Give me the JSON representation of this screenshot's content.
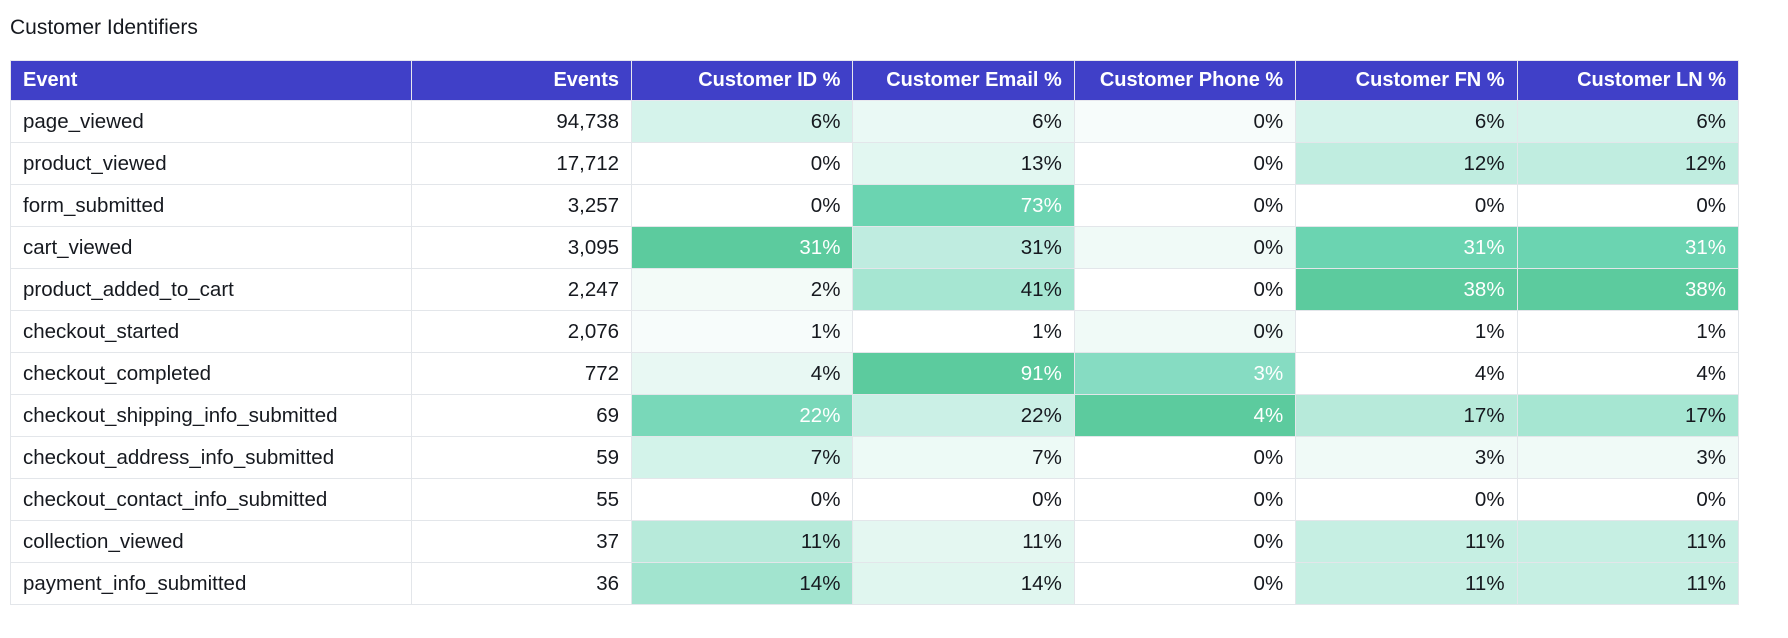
{
  "title": "Customer Identifiers",
  "table": {
    "columns": [
      "Event",
      "Events",
      "Customer ID %",
      "Customer Email %",
      "Customer Phone %",
      "Customer FN %",
      "Customer LN %"
    ],
    "rows": [
      {
        "event": "page_viewed",
        "events": "94,738",
        "cells": [
          "6%",
          "6%",
          "0%",
          "6%",
          "6%"
        ],
        "colors": [
          "#d5f3eb",
          "#eaf9f5",
          "#f7fcfb",
          "#d5f3eb",
          "#d5f3eb"
        ],
        "white": [
          false,
          false,
          false,
          false,
          false
        ]
      },
      {
        "event": "product_viewed",
        "events": "17,712",
        "cells": [
          "0%",
          "13%",
          "0%",
          "12%",
          "12%"
        ],
        "colors": [
          "#ffffff",
          "#e2f7f1",
          "#ffffff",
          "#c0ede0",
          "#c0ede0"
        ],
        "white": [
          false,
          false,
          false,
          false,
          false
        ]
      },
      {
        "event": "form_submitted",
        "events": "3,257",
        "cells": [
          "0%",
          "73%",
          "0%",
          "0%",
          "0%"
        ],
        "colors": [
          "#ffffff",
          "#6bd4b1",
          "#ffffff",
          "#ffffff",
          "#ffffff"
        ],
        "white": [
          false,
          true,
          false,
          false,
          false
        ]
      },
      {
        "event": "cart_viewed",
        "events": "3,095",
        "cells": [
          "31%",
          "31%",
          "0%",
          "31%",
          "31%"
        ],
        "colors": [
          "#5ccb9e",
          "#bfece0",
          "#f0faf7",
          "#6bd4b1",
          "#6bd4b1"
        ],
        "white": [
          true,
          false,
          false,
          true,
          true
        ]
      },
      {
        "event": "product_added_to_cart",
        "events": "2,247",
        "cells": [
          "2%",
          "41%",
          "0%",
          "38%",
          "38%"
        ],
        "colors": [
          "#f3fbf8",
          "#a6e6d2",
          "#ffffff",
          "#5ccb9e",
          "#5ccb9e"
        ],
        "white": [
          false,
          false,
          false,
          true,
          true
        ]
      },
      {
        "event": "checkout_started",
        "events": "2,076",
        "cells": [
          "1%",
          "1%",
          "0%",
          "1%",
          "1%"
        ],
        "colors": [
          "#f7fcfb",
          "#ffffff",
          "#f0faf7",
          "#ffffff",
          "#ffffff"
        ],
        "white": [
          false,
          false,
          false,
          false,
          false
        ]
      },
      {
        "event": "checkout_completed",
        "events": "772",
        "cells": [
          "4%",
          "91%",
          "3%",
          "4%",
          "4%"
        ],
        "colors": [
          "#e8f8f3",
          "#5ccb9e",
          "#86dcc2",
          "#ffffff",
          "#ffffff"
        ],
        "white": [
          false,
          true,
          true,
          false,
          false
        ]
      },
      {
        "event": "checkout_shipping_info_submitted",
        "events": "69",
        "cells": [
          "22%",
          "22%",
          "4%",
          "17%",
          "17%"
        ],
        "colors": [
          "#79d8b9",
          "#cbf0e6",
          "#5ccb9e",
          "#b7eada",
          "#a6e6d2"
        ],
        "white": [
          true,
          false,
          true,
          false,
          false
        ]
      },
      {
        "event": "checkout_address_info_submitted",
        "events": "59",
        "cells": [
          "7%",
          "7%",
          "0%",
          "3%",
          "3%"
        ],
        "colors": [
          "#d3f3ea",
          "#edfaf6",
          "#ffffff",
          "#f0faf7",
          "#f0faf7"
        ],
        "white": [
          false,
          false,
          false,
          false,
          false
        ]
      },
      {
        "event": "checkout_contact_info_submitted",
        "events": "55",
        "cells": [
          "0%",
          "0%",
          "0%",
          "0%",
          "0%"
        ],
        "colors": [
          "#ffffff",
          "#ffffff",
          "#ffffff",
          "#ffffff",
          "#ffffff"
        ],
        "white": [
          false,
          false,
          false,
          false,
          false
        ]
      },
      {
        "event": "collection_viewed",
        "events": "37",
        "cells": [
          "11%",
          "11%",
          "0%",
          "11%",
          "11%"
        ],
        "colors": [
          "#b7eada",
          "#e4f7f1",
          "#ffffff",
          "#c6efe3",
          "#c6efe3"
        ],
        "white": [
          false,
          false,
          false,
          false,
          false
        ]
      },
      {
        "event": "payment_info_submitted",
        "events": "36",
        "cells": [
          "14%",
          "14%",
          "0%",
          "11%",
          "11%"
        ],
        "colors": [
          "#a2e4cf",
          "#e0f6ef",
          "#ffffff",
          "#c6efe3",
          "#c6efe3"
        ],
        "white": [
          false,
          false,
          false,
          false,
          false
        ]
      }
    ]
  }
}
